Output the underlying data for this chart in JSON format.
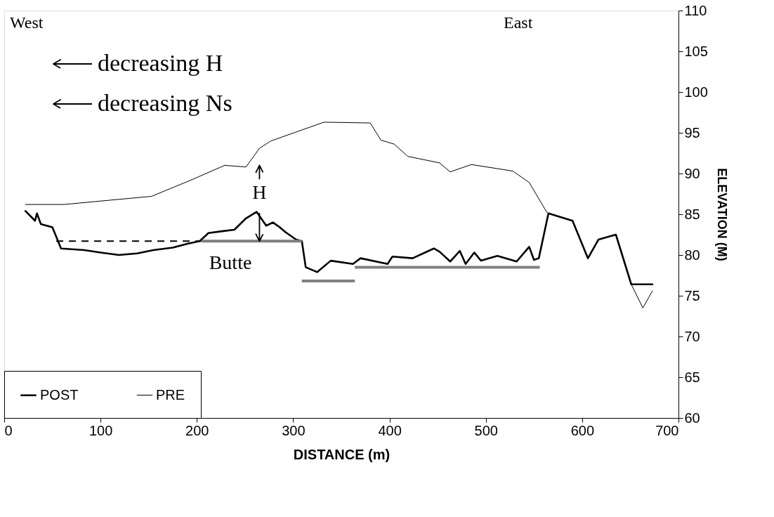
{
  "chart_data": {
    "type": "line",
    "xlabel": "DISTANCE (m)",
    "ylabel": "ELEVATION (M)",
    "xlim": [
      0,
      700
    ],
    "xticks": [
      0,
      100,
      200,
      300,
      400,
      500,
      600,
      700
    ],
    "ylim": [
      60,
      110
    ],
    "yticks": [
      60,
      65,
      70,
      75,
      80,
      85,
      90,
      95,
      100,
      105,
      110
    ],
    "grid": false,
    "legend": "bottom left",
    "marker": "none",
    "series": [
      {
        "name": "POST",
        "color": "#000000",
        "x": [
          22,
          32,
          34,
          38,
          50,
          59,
          83,
          100,
          119,
          138,
          155,
          175,
          191,
          203,
          212,
          225,
          239,
          251,
          262,
          272,
          279,
          286,
          292,
          303,
          309,
          313,
          325,
          339,
          362,
          370,
          398,
          403,
          424,
          446,
          452,
          463,
          473,
          479,
          488,
          495,
          512,
          532,
          545,
          550,
          555,
          565,
          590,
          606,
          617,
          635,
          651,
          673
        ],
        "values": [
          85.4,
          84.2,
          85.1,
          83.8,
          83.4,
          80.8,
          80.6,
          80.3,
          80.0,
          80.2,
          80.6,
          80.9,
          81.4,
          81.7,
          82.7,
          82.9,
          83.1,
          84.5,
          85.3,
          83.6,
          84.0,
          83.4,
          82.8,
          81.9,
          81.7,
          78.5,
          77.9,
          79.3,
          78.9,
          79.6,
          78.9,
          79.8,
          79.6,
          80.8,
          80.4,
          79.2,
          80.5,
          78.9,
          80.3,
          79.3,
          79.9,
          79.2,
          81.0,
          79.4,
          79.6,
          85.1,
          84.2,
          79.6,
          81.9,
          82.5,
          76.4,
          76.4
        ]
      },
      {
        "name": "PRE",
        "color": "#000000",
        "x": [
          22,
          62,
          153,
          194,
          229,
          251,
          265,
          277,
          332,
          380,
          391,
          405,
          419,
          452,
          463,
          485,
          528,
          545,
          563,
          565,
          590,
          606,
          617,
          635,
          651,
          663,
          673
        ],
        "values": [
          86.2,
          86.2,
          87.2,
          89.2,
          91.0,
          90.8,
          93.1,
          94.0,
          96.3,
          96.2,
          94.1,
          93.6,
          92.1,
          91.3,
          90.2,
          91.1,
          90.3,
          88.9,
          85.3,
          85.1,
          84.2,
          79.6,
          81.9,
          82.5,
          76.4,
          73.5,
          75.6
        ]
      },
      {
        "color": "#000000",
        "line_style": "dashed",
        "x": [
          54,
          205
        ],
        "values": [
          81.7,
          81.7
        ]
      },
      {
        "color": "#808080",
        "x": [
          205,
          309
        ],
        "values": [
          81.7,
          81.7
        ]
      },
      {
        "color": "#808080",
        "x": [
          309,
          364
        ],
        "values": [
          76.8,
          76.8
        ]
      },
      {
        "color": "#808080",
        "x": [
          364,
          556
        ],
        "values": [
          78.5,
          78.5
        ]
      }
    ],
    "annotations": [
      "West",
      "East",
      "decreasing H",
      "decreasing Ns",
      {
        "text": "H",
        "x": 265,
        "y": 81.7
      },
      "Butte"
    ]
  }
}
